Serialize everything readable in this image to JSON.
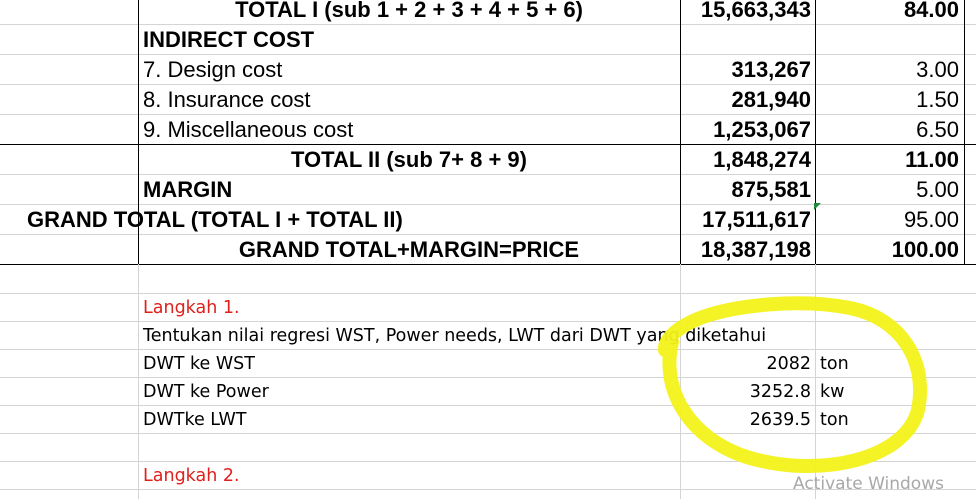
{
  "cost_table": {
    "total1": {
      "label": "TOTAL I (sub 1 + 2 + 3 + 4 + 5 + 6)",
      "amount": "15,663,343",
      "percent": "84.00"
    },
    "indirect_header": "INDIRECT COST",
    "design": {
      "label": "7.  Design cost",
      "amount": "313,267",
      "percent": "3.00"
    },
    "insurance": {
      "label": "8. Insurance cost",
      "amount": "281,940",
      "percent": "1.50"
    },
    "misc": {
      "label": "9. Miscellaneous cost",
      "amount": "1,253,067",
      "percent": "6.50"
    },
    "total2": {
      "label": "TOTAL II (sub 7+ 8 + 9)",
      "amount": "1,848,274",
      "percent": "11.00"
    },
    "margin": {
      "label": "MARGIN",
      "amount": "875,581",
      "percent": "5.00"
    },
    "grand_total": {
      "label": "GRAND TOTAL (TOTAL I + TOTAL II)",
      "amount": "17,511,617",
      "percent": "95.00"
    },
    "price": {
      "label": "GRAND TOTAL+MARGIN=PRICE",
      "amount": "18,387,198",
      "percent": "100.00"
    }
  },
  "steps": {
    "step1_title": "Langkah 1.",
    "step1_desc": "Tentukan nilai regresi WST, Power needs, LWT dari DWT yang diketahui",
    "rows": [
      {
        "label": "DWT ke WST",
        "value": "2082",
        "unit": "ton"
      },
      {
        "label": "DWT ke Power",
        "value": "3252.8",
        "unit": "kw"
      },
      {
        "label": "DWTke LWT",
        "value": "2639.5",
        "unit": "ton"
      }
    ],
    "step2_title": "Langkah 2."
  },
  "watermark": "Activate Windows",
  "colors": {
    "highlight": "#f2f21a",
    "step_title": "#e0201b",
    "marker": "#1f8a3a"
  }
}
